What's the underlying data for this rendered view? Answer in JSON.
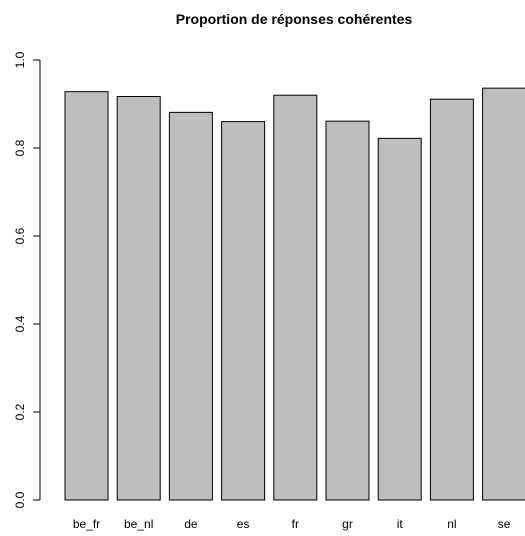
{
  "chart_data": {
    "type": "bar",
    "title": "Proportion de réponses cohérentes",
    "xlabel": "",
    "ylabel": "",
    "categories": [
      "be_fr",
      "be_nl",
      "de",
      "es",
      "fr",
      "gr",
      "it",
      "nl",
      "se"
    ],
    "values": [
      0.928,
      0.917,
      0.881,
      0.86,
      0.92,
      0.861,
      0.822,
      0.911,
      0.936
    ],
    "ylim": [
      0,
      1
    ],
    "yticks": [
      "0.0",
      "0.2",
      "0.4",
      "0.6",
      "0.8",
      "1.0"
    ],
    "bar_color": "#bebebe",
    "grid": false
  }
}
